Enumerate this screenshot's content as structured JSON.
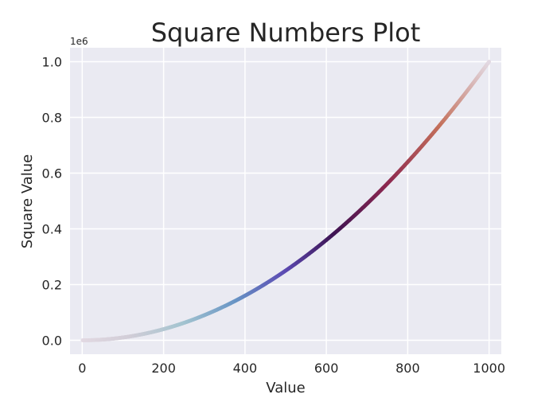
{
  "chart_data": {
    "type": "scatter",
    "title": "Square Numbers Plot",
    "xlabel": "Value",
    "ylabel": "Square Value",
    "y_offset_label": "1e6",
    "xlim": [
      -30,
      1030
    ],
    "ylim": [
      -0.05,
      1.05
    ],
    "x_ticks": [
      0,
      200,
      400,
      600,
      800,
      1000
    ],
    "x_tick_labels": [
      "0",
      "200",
      "400",
      "600",
      "800",
      "1000"
    ],
    "y_ticks": [
      0.0,
      0.2,
      0.4,
      0.6,
      0.8,
      1.0
    ],
    "y_tick_labels": [
      "0.0",
      "0.2",
      "0.4",
      "0.6",
      "0.8",
      "1.0"
    ],
    "grid": true,
    "colormap": "twilight",
    "series": [
      {
        "x_start": 1,
        "x_end": 1000,
        "y_formula": "x^2",
        "y_scale": 1000000
      }
    ]
  }
}
